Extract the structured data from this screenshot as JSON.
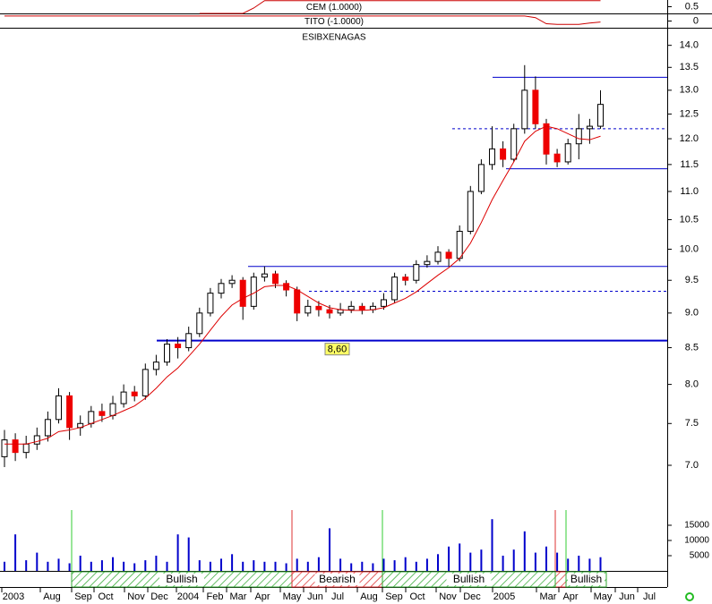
{
  "chart_data": {
    "type": "candlestick",
    "title": "ESIBXENAGAS",
    "log_scale": true,
    "ylim": [
      6.55,
      14.37
    ],
    "yticks": [
      {
        "value": 7,
        "label": "7.0"
      },
      7.5,
      {
        "value": 8,
        "label": "8.0"
      },
      8.5,
      {
        "value": 9,
        "label": "9.0"
      },
      9.5,
      {
        "value": 10,
        "label": "10.0"
      },
      10.5,
      {
        "value": 11,
        "label": "11.0"
      },
      11.5,
      {
        "value": 12,
        "label": "12.0"
      },
      12.5,
      {
        "value": 13,
        "label": "13.0"
      },
      13.5,
      {
        "value": 14,
        "label": "14.0"
      }
    ],
    "up_color": "#ffffff",
    "down_color": "#ee0000",
    "open": [
      7.1,
      7.3,
      7.15,
      7.25,
      7.35,
      7.55,
      7.85,
      7.45,
      7.5,
      7.65,
      7.6,
      7.75,
      7.9,
      7.85,
      8.2,
      8.3,
      8.55,
      8.5,
      8.7,
      9.0,
      9.3,
      9.45,
      9.5,
      9.1,
      9.55,
      9.6,
      9.45,
      9.35,
      9.0,
      9.1,
      9.05,
      9.0,
      9.05,
      9.1,
      9.05,
      9.1,
      9.2,
      9.55,
      9.5,
      9.75,
      9.8,
      9.95,
      9.85,
      10.3,
      11.0,
      11.5,
      11.8,
      11.6,
      12.2,
      13.0,
      12.3,
      11.7,
      11.55,
      11.9,
      12.2,
      12.25
    ],
    "high": [
      7.42,
      7.38,
      7.35,
      7.45,
      7.65,
      7.95,
      7.9,
      7.6,
      7.72,
      7.75,
      7.85,
      8.0,
      7.98,
      8.28,
      8.4,
      8.62,
      8.65,
      8.8,
      9.08,
      9.38,
      9.52,
      9.58,
      9.55,
      9.62,
      9.72,
      9.65,
      9.5,
      9.4,
      9.2,
      9.18,
      9.12,
      9.15,
      9.18,
      9.15,
      9.16,
      9.3,
      9.62,
      9.6,
      9.82,
      9.9,
      10.05,
      10.0,
      10.4,
      11.1,
      11.6,
      12.25,
      11.95,
      12.3,
      13.55,
      13.3,
      12.4,
      11.8,
      12.0,
      12.5,
      12.4,
      13.0
    ],
    "low": [
      6.98,
      7.05,
      7.08,
      7.18,
      7.28,
      7.5,
      7.3,
      7.35,
      7.45,
      7.52,
      7.55,
      7.7,
      7.78,
      7.8,
      8.12,
      8.25,
      8.35,
      8.45,
      8.65,
      8.95,
      9.22,
      9.38,
      8.9,
      9.05,
      9.48,
      9.38,
      9.25,
      8.88,
      8.95,
      8.95,
      8.92,
      8.96,
      9.0,
      8.98,
      9.0,
      9.05,
      9.15,
      9.42,
      9.45,
      9.7,
      9.75,
      9.72,
      9.8,
      10.25,
      10.95,
      11.4,
      11.45,
      11.55,
      12.1,
      12.2,
      11.5,
      11.45,
      11.5,
      11.6,
      11.9,
      12.2
    ],
    "close": [
      7.3,
      7.15,
      7.25,
      7.35,
      7.55,
      7.85,
      7.45,
      7.5,
      7.65,
      7.6,
      7.75,
      7.9,
      7.85,
      8.2,
      8.3,
      8.55,
      8.5,
      8.7,
      9.0,
      9.3,
      9.45,
      9.5,
      9.1,
      9.55,
      9.6,
      9.45,
      9.35,
      9.0,
      9.1,
      9.05,
      9.0,
      9.05,
      9.1,
      9.05,
      9.1,
      9.2,
      9.55,
      9.5,
      9.75,
      9.8,
      9.95,
      9.85,
      10.3,
      11.0,
      11.5,
      11.8,
      11.6,
      12.2,
      13.0,
      12.3,
      11.7,
      11.55,
      11.9,
      12.2,
      12.25,
      12.7
    ],
    "ma": [
      7.25,
      7.25,
      7.25,
      7.28,
      7.32,
      7.4,
      7.42,
      7.45,
      7.5,
      7.55,
      7.6,
      7.66,
      7.72,
      7.82,
      7.95,
      8.1,
      8.22,
      8.38,
      8.55,
      8.75,
      8.95,
      9.12,
      9.22,
      9.3,
      9.4,
      9.42,
      9.42,
      9.35,
      9.25,
      9.15,
      9.08,
      9.05,
      9.04,
      9.04,
      9.05,
      9.08,
      9.15,
      9.22,
      9.32,
      9.45,
      9.58,
      9.7,
      9.85,
      10.1,
      10.45,
      10.85,
      11.2,
      11.55,
      11.95,
      12.15,
      12.25,
      12.2,
      12.1,
      12.0,
      11.98,
      12.05
    ],
    "ma_color": "#dd0000",
    "levels": [
      {
        "value": 13.28,
        "style": "solid"
      },
      {
        "value": 12.2,
        "style": "dashed"
      },
      {
        "value": 11.42,
        "style": "solid"
      },
      {
        "value": 9.72,
        "style": "solid"
      },
      {
        "value": 9.33,
        "style": "dashed"
      },
      {
        "value": 8.6,
        "style": "thick"
      }
    ],
    "level_color": "#0000cc",
    "annotation": {
      "value": 8.6,
      "label": "8,60"
    },
    "volume": {
      "ylim": [
        0,
        20000
      ],
      "yticks": [
        5000,
        10000,
        15000
      ],
      "color": "#0000cc",
      "values": [
        3000,
        12000,
        3500,
        6000,
        3000,
        4000,
        2500,
        5000,
        3000,
        3500,
        4500,
        3000,
        2500,
        3500,
        5000,
        3000,
        12000,
        11000,
        3500,
        3000,
        4000,
        5500,
        3000,
        3500,
        3000,
        3000,
        2500,
        4000,
        3000,
        4500,
        14000,
        4000,
        2500,
        3000,
        2500,
        4000,
        3500,
        4500,
        3000,
        4000,
        5500,
        8000,
        9000,
        6000,
        7000,
        17000,
        5000,
        7000,
        13000,
        6000,
        8000,
        6000,
        4000,
        5000,
        4000,
        4500
      ]
    },
    "indicators": [
      {
        "name": "CEM (1.0000)",
        "ylim": [
          0,
          1
        ],
        "yticks": [
          0.5
        ],
        "color": "#cc0000",
        "values": [
          null,
          null,
          null,
          null,
          null,
          null,
          null,
          null,
          null,
          null,
          null,
          null,
          null,
          null,
          null,
          null,
          null,
          null,
          0,
          0,
          0,
          0,
          0,
          0.4,
          0.95,
          0.95,
          0.95,
          0.95,
          0.95,
          0.95,
          0.95,
          0.95,
          0.95,
          0.95,
          0.95,
          0.95,
          0.95,
          0.95,
          0.95,
          0.95,
          0.95,
          0.95,
          0.95,
          0.95,
          0.95,
          0.95,
          0.95,
          0.95,
          0.95,
          0.95,
          0.95,
          0.95,
          0.95,
          0.95,
          0.95,
          0.95
        ]
      },
      {
        "name": "TITO (-1.0000)",
        "ylim": [
          -1,
          1
        ],
        "yticks": [
          0
        ],
        "color": "#cc0000",
        "values": [
          0.75,
          0.75,
          0.75,
          0.75,
          0.75,
          0.75,
          0.75,
          0.75,
          0.75,
          0.75,
          0.75,
          0.75,
          0.75,
          0.75,
          0.75,
          0.75,
          0.75,
          0.75,
          0.75,
          0.75,
          0.75,
          0.75,
          0.75,
          0.75,
          0.75,
          0.75,
          0.75,
          0.75,
          0.75,
          0.75,
          0.75,
          0.75,
          0.75,
          0.75,
          0.75,
          0.75,
          0.75,
          0.75,
          0.75,
          0.75,
          0.75,
          0.75,
          0.75,
          0.75,
          0.75,
          0.75,
          0.75,
          0.75,
          0.75,
          0.5,
          -0.4,
          -0.5,
          -0.5,
          -0.5,
          -0.3,
          -0.15
        ]
      }
    ],
    "regimes": [
      {
        "label": "Bullish",
        "signal": "bullish"
      },
      {
        "label": "Bearish",
        "signal": "bearish"
      },
      {
        "label": "Bullish",
        "signal": "bullish"
      },
      {
        "label": "Bullish",
        "signal": "bullish"
      }
    ],
    "x_labels": [
      "2003",
      "Aug",
      "Sep",
      "Oct",
      "Nov",
      "Dec",
      "2004",
      "Feb",
      "Mar",
      "Apr",
      "May",
      "Jun",
      "Jul",
      "Aug",
      "Sep",
      "Oct",
      "Nov",
      "Dec",
      "2005",
      "Mar",
      "Apr",
      "May",
      "Jun",
      "Jul"
    ]
  }
}
